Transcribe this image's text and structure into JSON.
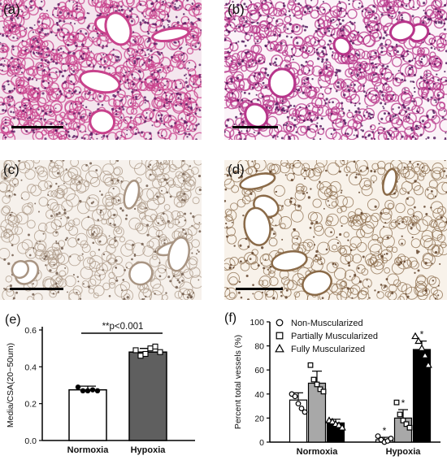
{
  "panels": {
    "a": {
      "label": "(a)",
      "stain": "he",
      "colors": {
        "bg": "#f4e6ee",
        "tissue": "#c8428c",
        "nuclei": "#5a1a62"
      }
    },
    "b": {
      "label": "(b)",
      "stain": "he",
      "colors": {
        "bg": "#fbf3f8",
        "tissue": "#b7358a",
        "nuclei": "#4e1358"
      }
    },
    "c": {
      "label": "(c)",
      "stain": "ihc",
      "colors": {
        "bg": "#f6f1ec",
        "tissue": "#a89482",
        "nuclei": "#6a5444"
      }
    },
    "d": {
      "label": "(d)",
      "stain": "ihc",
      "colors": {
        "bg": "#f8f2ea",
        "tissue": "#8a6a48",
        "nuclei": "#5a3a20"
      }
    }
  },
  "chart_data": [
    {
      "type": "bar",
      "panel_label": "(e)",
      "categories": [
        "Normoxia",
        "Hypoxia"
      ],
      "values": [
        0.275,
        0.48
      ],
      "errors": [
        0.02,
        0.02
      ],
      "points": [
        [
          0.29,
          0.27,
          0.27,
          0.275,
          0.27
        ],
        [
          0.49,
          0.46,
          0.47,
          0.5,
          0.51,
          0.48
        ]
      ],
      "bar_colors": [
        "#ffffff",
        "#5f5f5f"
      ],
      "ylabel": "Media/CSA(20~50um)",
      "yticks": [
        "0.0",
        "0.2",
        "0.4",
        "0.6"
      ],
      "ylim": [
        0,
        0.6
      ],
      "annotation": "**p<0.001"
    },
    {
      "type": "bar",
      "panel_label": "(f)",
      "categories": [
        "Normoxia",
        "Hypoxia"
      ],
      "ylabel": "Percent total vessels (%)",
      "yticks": [
        "0",
        "20",
        "40",
        "60",
        "80",
        "100"
      ],
      "ylim": [
        0,
        100
      ],
      "legend_position": "top-left",
      "series": [
        {
          "name": "Non-Muscularized",
          "marker": "circle",
          "color": "#ffffff",
          "values": [
            35,
            2
          ],
          "errors": [
            6,
            2
          ],
          "points": [
            [
              40,
              38,
              32,
              28,
              25
            ],
            [
              5,
              2,
              0,
              1,
              3
            ]
          ]
        },
        {
          "name": "Partially Muscularized",
          "marker": "square",
          "color": "#a8a8a8",
          "values": [
            49,
            20
          ],
          "errors": [
            10,
            7
          ],
          "points": [
            [
              64,
              52,
              48,
              44,
              42
            ],
            [
              33,
              23,
              18,
              15,
              12
            ]
          ]
        },
        {
          "name": "Fully Muscularized",
          "marker": "triangle",
          "color": "#000000",
          "values": [
            16,
            77
          ],
          "errors": [
            3,
            7
          ],
          "points": [
            [
              18,
              17,
              15,
              14,
              12
            ],
            [
              88,
              84,
              78,
              72,
              64
            ]
          ]
        }
      ],
      "significance_mark": "*"
    }
  ]
}
